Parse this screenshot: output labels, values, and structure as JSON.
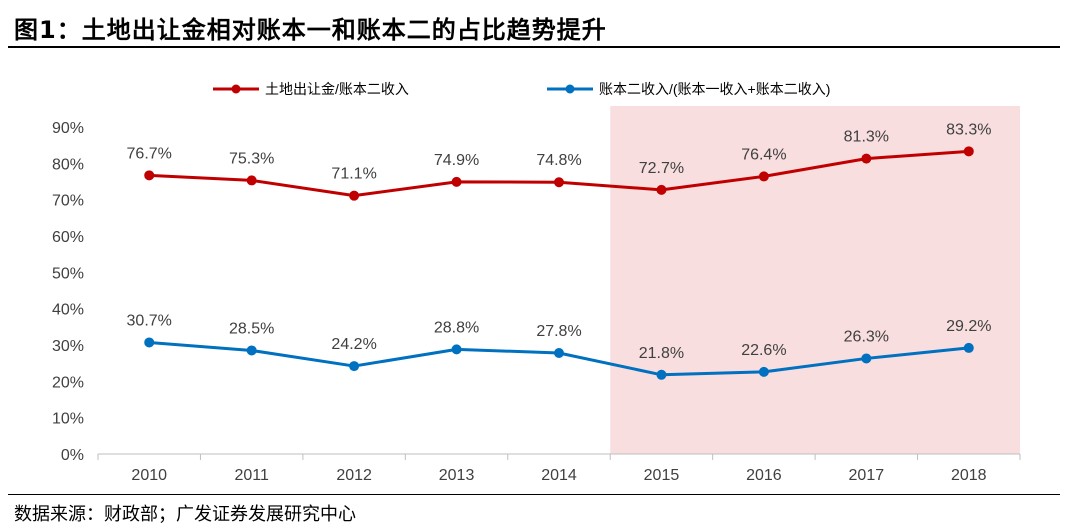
{
  "figure": {
    "title": "图1：土地出让金相对账本一和账本二的占比趋势提升",
    "source": "数据来源：财政部；广发证券发展研究中心"
  },
  "colors": {
    "series_red": "#C00000",
    "series_blue": "#0070C0",
    "highlight": "#F8DEDE",
    "axis": "#BFBFBF",
    "text": "#404040"
  },
  "chart_data": {
    "type": "line",
    "x": [
      "2010",
      "2011",
      "2012",
      "2013",
      "2014",
      "2015",
      "2016",
      "2017",
      "2018"
    ],
    "series": [
      {
        "name": "土地出让金/账本二收入",
        "color": "#C00000",
        "values": [
          76.7,
          75.3,
          71.1,
          74.9,
          74.8,
          72.7,
          76.4,
          81.3,
          83.3
        ],
        "labels": [
          "76.7%",
          "75.3%",
          "71.1%",
          "74.9%",
          "74.8%",
          "72.7%",
          "76.4%",
          "81.3%",
          "83.3%"
        ]
      },
      {
        "name": "账本二收入/(账本一收入+账本二收入)",
        "color": "#0070C0",
        "values": [
          30.7,
          28.5,
          24.2,
          28.8,
          27.8,
          21.8,
          22.6,
          26.3,
          29.2
        ],
        "labels": [
          "30.7%",
          "28.5%",
          "24.2%",
          "28.8%",
          "27.8%",
          "21.8%",
          "22.6%",
          "26.3%",
          "29.2%"
        ]
      }
    ],
    "ylim": [
      0,
      90
    ],
    "yticks": [
      0,
      10,
      20,
      30,
      40,
      50,
      60,
      70,
      80,
      90
    ],
    "ytick_labels": [
      "0%",
      "10%",
      "20%",
      "30%",
      "40%",
      "50%",
      "60%",
      "70%",
      "80%",
      "90%"
    ],
    "highlight_range": [
      "2015",
      "2018"
    ],
    "grid": false,
    "legend_position": "top",
    "xlabel": "",
    "ylabel": ""
  }
}
